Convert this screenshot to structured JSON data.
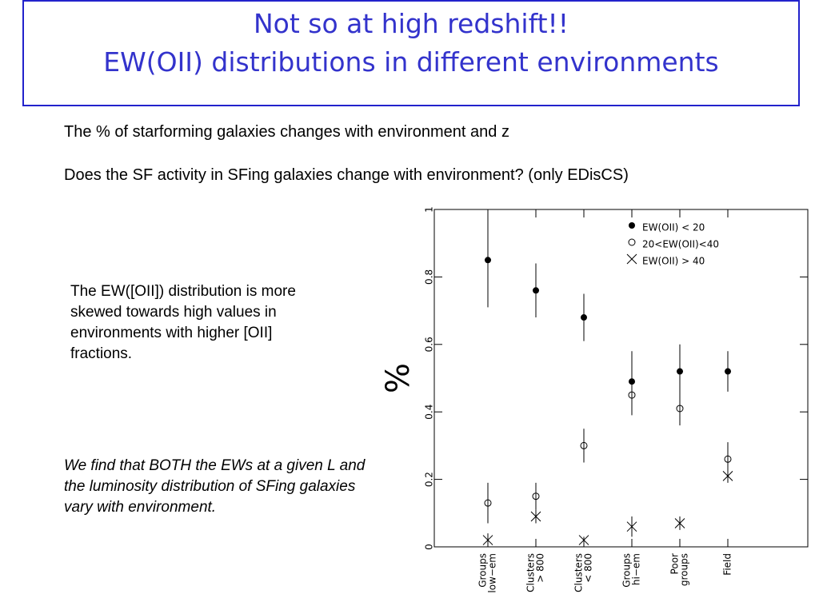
{
  "title": [
    "Not so at high redshift!!",
    "EW(OII) distributions in different environments"
  ],
  "body": [
    "The % of starforming galaxies changes with environment and z",
    "Does the SF activity in SFing galaxies change with environment? (only EDisCS)"
  ],
  "note": "The EW([OII]) distribution is more skewed towards high values in environments with higher [OII] fractions.",
  "conclusion": "We find that BOTH the EWs at a given L and the luminosity distribution of SFing galaxies vary with environment.",
  "chart_data": {
    "type": "errorbar",
    "ylabel": "%",
    "categories": [
      [
        "Groups",
        "low−em"
      ],
      [
        "Clusters",
        "> 800"
      ],
      [
        "Clusters",
        "< 800"
      ],
      [
        "Groups",
        "hi−em"
      ],
      [
        "Poor",
        "groups"
      ],
      [
        "Field"
      ]
    ],
    "ylim": [
      0,
      1
    ],
    "yticks": [
      0,
      0.2,
      0.4,
      0.6,
      0.8,
      1
    ],
    "legend": "upper right",
    "series": [
      {
        "name": "EW(OII) < 20",
        "marker": "filled-circle",
        "color": "#000000",
        "values": [
          0.85,
          0.76,
          0.68,
          0.49,
          0.52,
          0.52
        ],
        "errors": [
          0.14,
          0.08,
          0.07,
          0.09,
          0.08,
          0.06
        ]
      },
      {
        "name": "20<EW(OII)<40",
        "marker": "open-circle",
        "color": "#000000",
        "values": [
          0.13,
          0.15,
          0.3,
          0.45,
          0.41,
          0.26
        ],
        "errors": [
          0.06,
          0.04,
          0.05,
          0.06,
          0.05,
          0.05
        ]
      },
      {
        "name": "EW(OII) > 40",
        "marker": "cross",
        "color": "#000000",
        "values": [
          0.02,
          0.09,
          0.02,
          0.06,
          0.07,
          0.21
        ],
        "errors": [
          0.02,
          0.02,
          0.01,
          0.03,
          0.02,
          0.02
        ]
      }
    ]
  }
}
